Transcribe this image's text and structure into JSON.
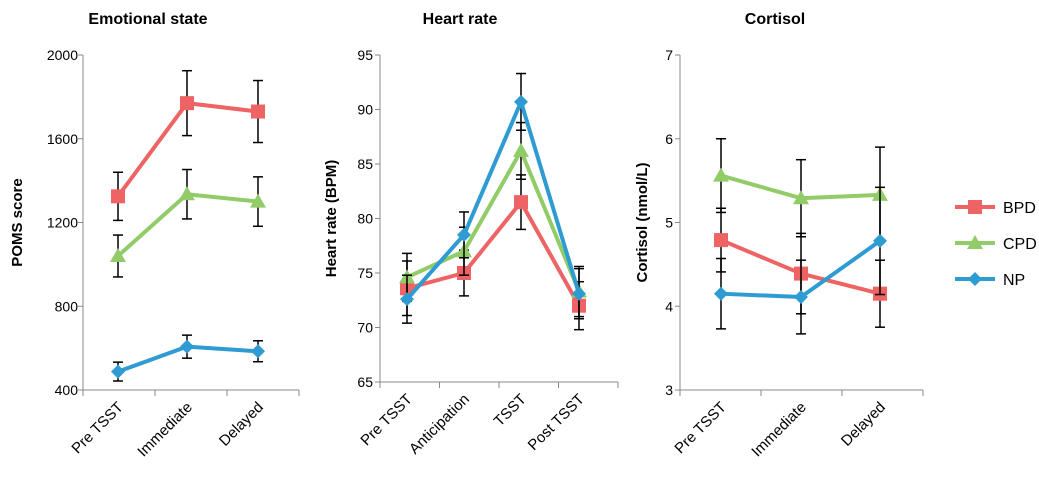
{
  "colors": {
    "BPD": "#ee6363",
    "CPD": "#92cc68",
    "NP": "#2e9bd3"
  },
  "legend": [
    {
      "name": "BPD",
      "marker": "square"
    },
    {
      "name": "CPD",
      "marker": "triangle"
    },
    {
      "name": "NP",
      "marker": "diamond"
    }
  ],
  "chart_data": [
    {
      "type": "line",
      "title": "Emotional state",
      "xlabel": "",
      "ylabel": "POMS score",
      "categories": [
        "Pre TSST",
        "Immediate",
        "Delayed"
      ],
      "ylim": [
        400,
        2000
      ],
      "yticks": [
        400,
        800,
        1200,
        1600,
        2000
      ],
      "grid": false,
      "series": [
        {
          "name": "BPD",
          "values": [
            1325,
            1770,
            1730
          ],
          "errors": [
            115,
            155,
            148
          ]
        },
        {
          "name": "CPD",
          "values": [
            1040,
            1335,
            1300
          ],
          "errors": [
            100,
            118,
            118
          ]
        },
        {
          "name": "NP",
          "values": [
            488,
            607,
            585
          ],
          "errors": [
            45,
            55,
            50
          ]
        }
      ]
    },
    {
      "type": "line",
      "title": "Heart rate",
      "xlabel": "",
      "ylabel": "Heart rate (BPM)",
      "categories": [
        "Pre TSST",
        "Anticipation",
        "TSST",
        "Post TSST"
      ],
      "ylim": [
        65,
        95
      ],
      "yticks": [
        65,
        70,
        75,
        80,
        85,
        90,
        95
      ],
      "grid": false,
      "series": [
        {
          "name": "BPD",
          "values": [
            73.6,
            75.0,
            81.5,
            72.0
          ],
          "errors": [
            2.5,
            2.1,
            2.5,
            2.2
          ]
        },
        {
          "name": "CPD",
          "values": [
            74.6,
            77.0,
            86.2,
            73.3
          ],
          "errors": [
            2.2,
            2.2,
            2.6,
            2.3
          ]
        },
        {
          "name": "NP",
          "values": [
            72.6,
            78.5,
            90.7,
            73.1
          ],
          "errors": [
            2.2,
            2.1,
            2.6,
            2.3
          ]
        }
      ]
    },
    {
      "type": "line",
      "title": "Cortisol",
      "xlabel": "",
      "ylabel": "Cortisol (nmol/L)",
      "categories": [
        "Pre TSST",
        "Immediate",
        "Delayed"
      ],
      "ylim": [
        3,
        7
      ],
      "yticks": [
        3,
        4,
        5,
        6,
        7
      ],
      "grid": false,
      "series": [
        {
          "name": "BPD",
          "values": [
            4.79,
            4.39,
            4.15
          ],
          "errors": [
            0.38,
            0.48,
            0.4
          ]
        },
        {
          "name": "CPD",
          "values": [
            5.56,
            5.29,
            5.33
          ],
          "errors": [
            0.44,
            0.46,
            0.57
          ]
        },
        {
          "name": "NP",
          "values": [
            4.15,
            4.11,
            4.78
          ],
          "errors": [
            0.42,
            0.44,
            0.64
          ]
        }
      ]
    }
  ]
}
